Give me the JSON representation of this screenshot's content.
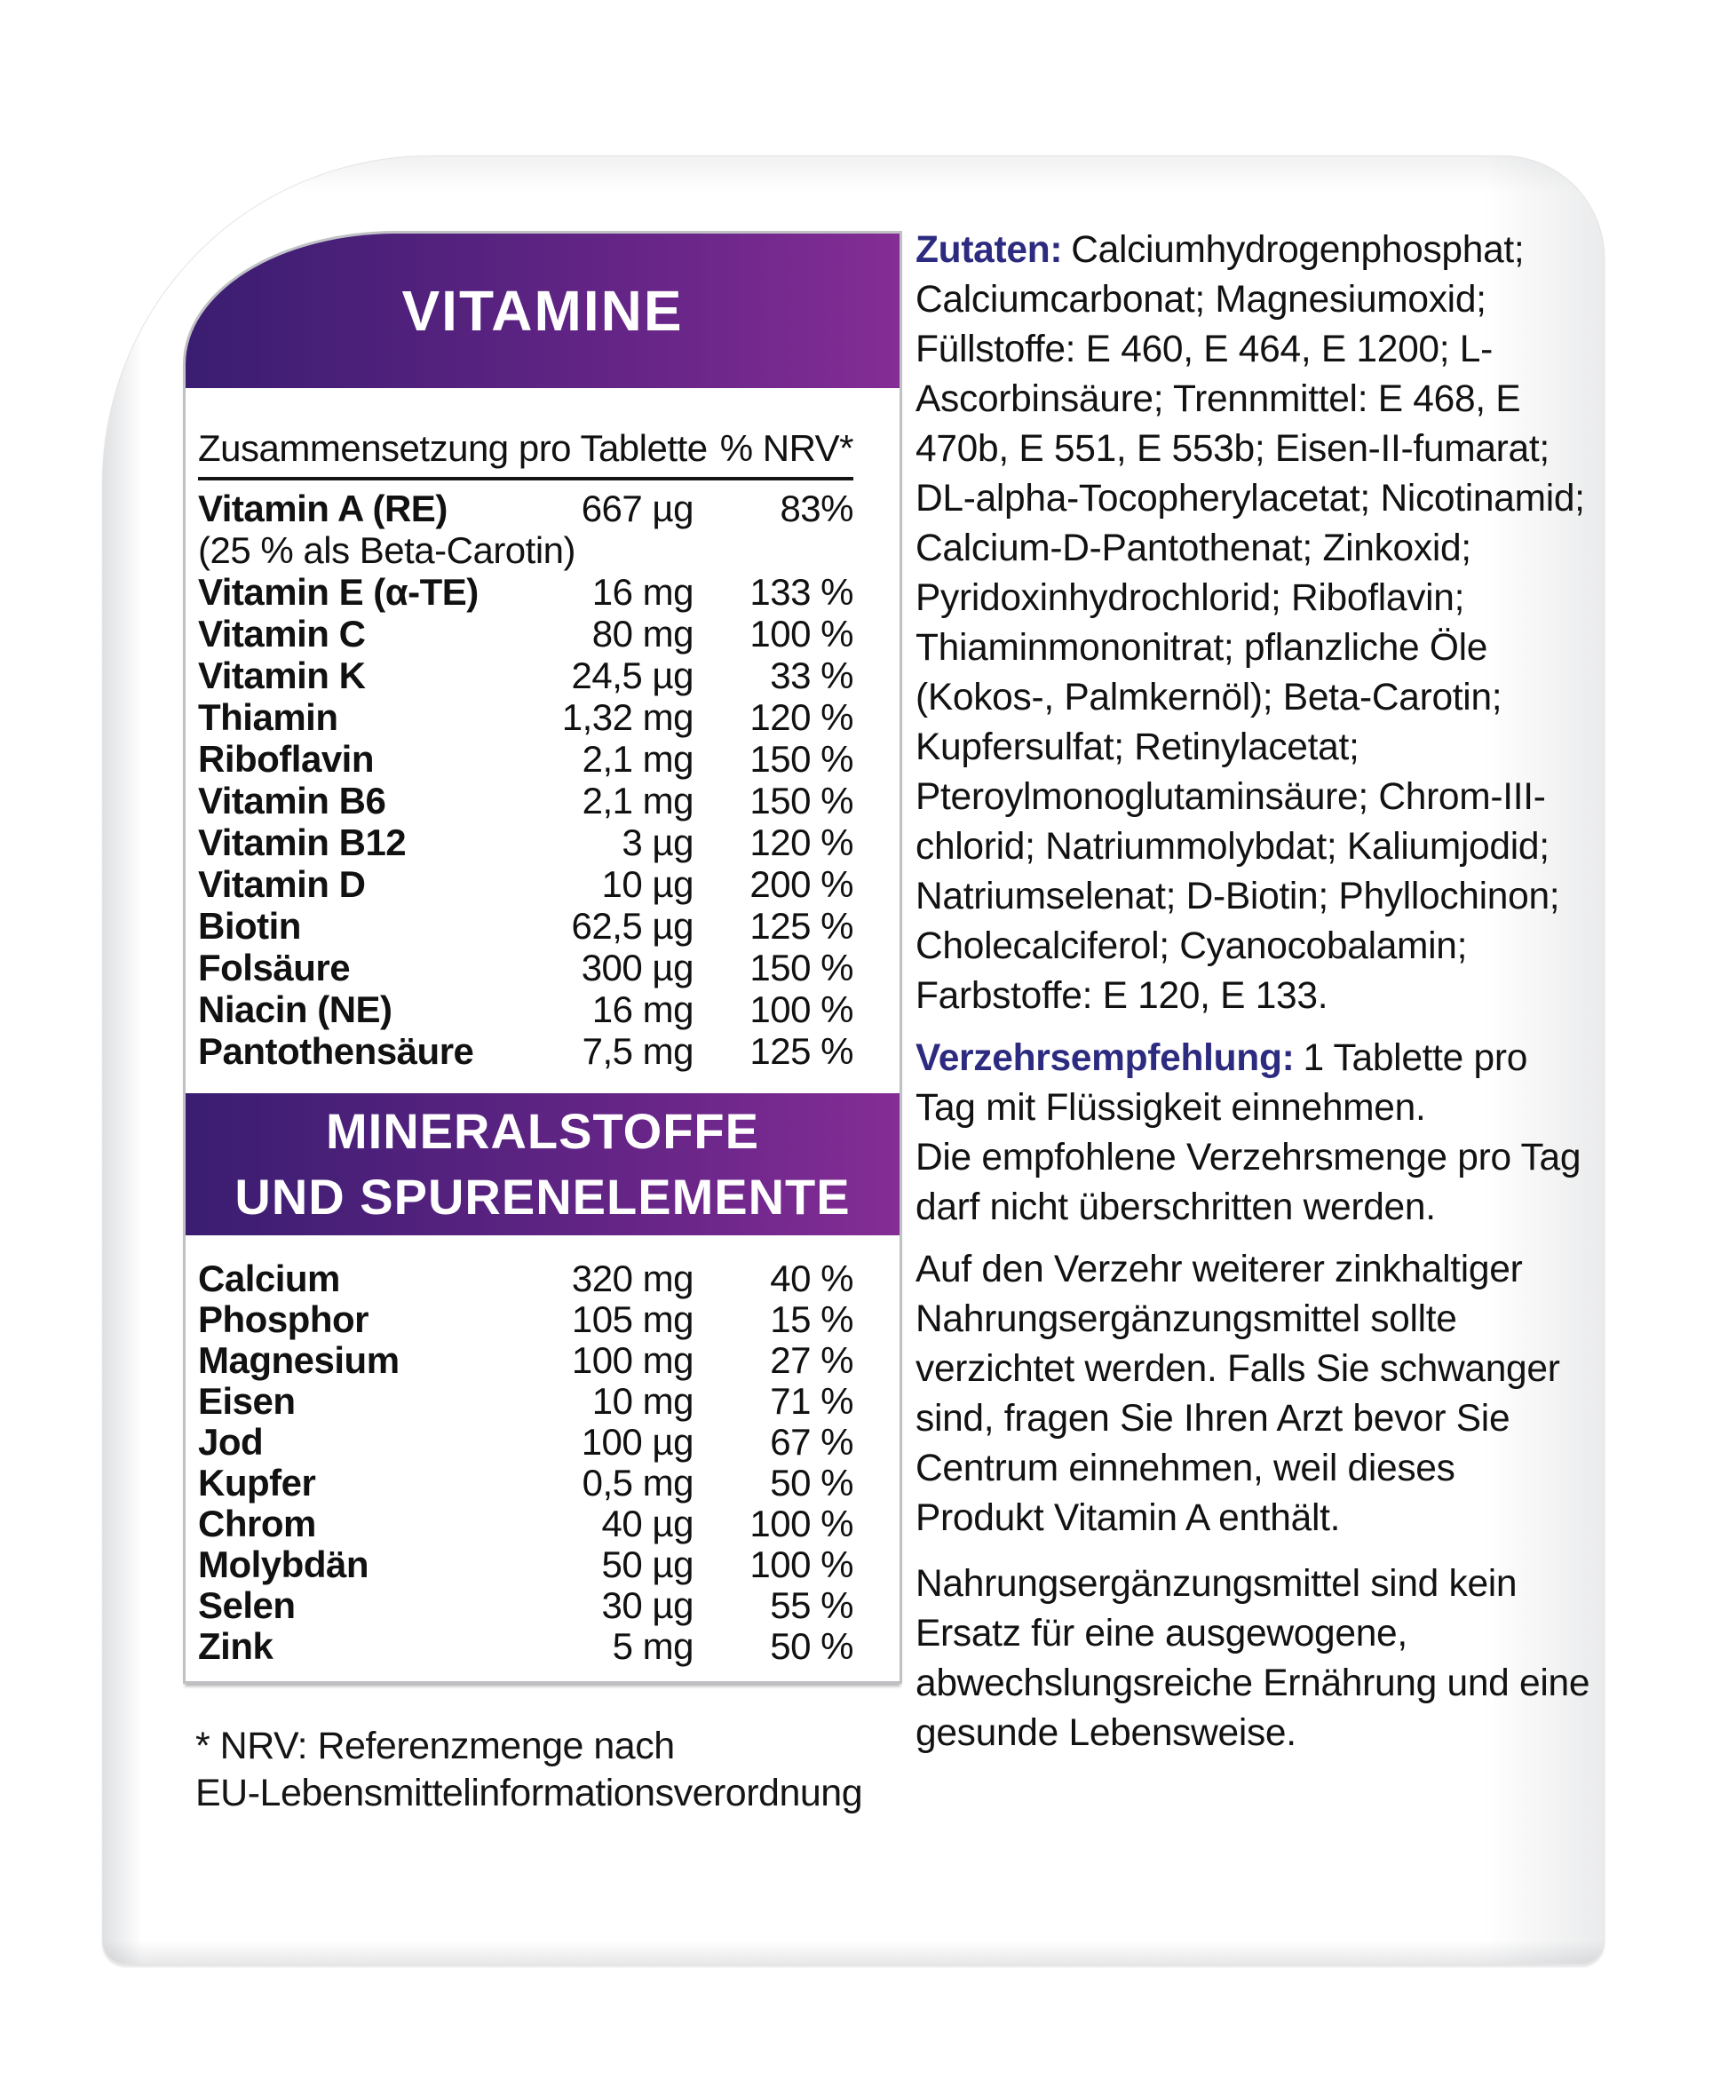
{
  "colors": {
    "banner_gradient_start": "#3a1d71",
    "banner_gradient_end": "#842d95",
    "accent_label_text": "#2d2b80",
    "body_text": "#121212"
  },
  "vitamins_section": {
    "banner_title": "VITAMINE",
    "header": {
      "col1": "Zusammensetzung pro Tablette",
      "col2": "% NRV*"
    },
    "rows": [
      {
        "name": "Vitamin A (RE)",
        "amount": "667 µg",
        "nrv": "83%",
        "note": "(25 % als Beta-Carotin)"
      },
      {
        "name": "Vitamin E (α-TE)",
        "amount": "16 mg",
        "nrv": "133 %"
      },
      {
        "name": "Vitamin C",
        "amount": "80 mg",
        "nrv": "100 %"
      },
      {
        "name": "Vitamin K",
        "amount": "24,5 µg",
        "nrv": "33 %"
      },
      {
        "name": "Thiamin",
        "amount": "1,32 mg",
        "nrv": "120 %"
      },
      {
        "name": "Riboflavin",
        "amount": "2,1 mg",
        "nrv": "150 %"
      },
      {
        "name": "Vitamin B6",
        "amount": "2,1 mg",
        "nrv": "150 %"
      },
      {
        "name": "Vitamin B12",
        "amount": "3 µg",
        "nrv": "120 %"
      },
      {
        "name": "Vitamin D",
        "amount": "10 µg",
        "nrv": "200 %"
      },
      {
        "name": "Biotin",
        "amount": "62,5 µg",
        "nrv": "125 %"
      },
      {
        "name": "Folsäure",
        "amount": "300 µg",
        "nrv": "150 %"
      },
      {
        "name": "Niacin (NE)",
        "amount": "16 mg",
        "nrv": "100 %"
      },
      {
        "name": "Pantothensäure",
        "amount": "7,5 mg",
        "nrv": "125 %"
      }
    ]
  },
  "minerals_section": {
    "banner_line1": "MINERALSTOFFE",
    "banner_line2": "UND SPURENELEMENTE",
    "rows": [
      {
        "name": "Calcium",
        "amount": "320 mg",
        "nrv": "40 %"
      },
      {
        "name": "Phosphor",
        "amount": "105 mg",
        "nrv": "15 %"
      },
      {
        "name": "Magnesium",
        "amount": "100 mg",
        "nrv": "27 %"
      },
      {
        "name": "Eisen",
        "amount": "10 mg",
        "nrv": "71 %"
      },
      {
        "name": "Jod",
        "amount": "100 µg",
        "nrv": "67 %"
      },
      {
        "name": "Kupfer",
        "amount": "0,5 mg",
        "nrv": "50 %"
      },
      {
        "name": "Chrom",
        "amount": "40 µg",
        "nrv": "100 %"
      },
      {
        "name": "Molybdän",
        "amount": "50 µg",
        "nrv": "100 %"
      },
      {
        "name": "Selen",
        "amount": "30 µg",
        "nrv": "55 %"
      },
      {
        "name": "Zink",
        "amount": "5 mg",
        "nrv": "50 %"
      }
    ]
  },
  "footnote": {
    "line1": "* NRV: Referenzmenge nach",
    "line2": "EU-Lebensmittelinformationsverordnung"
  },
  "info_column": {
    "zutaten_label": "Zutaten:",
    "zutaten_text": "Calciumhydrogenphosphat; Calciumcarbonat; Magnesiumoxid; Füllstoffe: E 460, E 464, E 1200; L-Ascorbinsäure; Trennmittel: E 468, E 470b, E 551, E 553b; Eisen-II-fumarat; DL-alpha-Tocopherylacetat; Nicotinamid; Calcium-D-Pantothenat; Zinkoxid; Pyridoxinhydrochlorid; Riboflavin; Thiaminmononitrat; pflanzliche Öle (Kokos-, Palmkernöl); Beta-Carotin; Kupfersulfat; Retinylacetat; Pteroylmonoglutaminsäure; Chrom-III-chlorid; Natriummolybdat; Kaliumjodid; Natriumselenat; D-Biotin; Phyllochinon; Cholecalciferol; Cyanocobalamin; Farbstoffe: E 120, E 133.",
    "verzehr_label": "Verzehrsempfehlung:",
    "verzehr_text1": "1 Tablette pro Tag mit Flüssigkeit einnehmen.",
    "verzehr_text2": "Die empfohlene Verzehrsmenge pro Tag darf nicht überschritten werden.",
    "verzehr_text3": "Auf den Verzehr weiterer zinkhaltiger Nahrungsergänzungsmittel sollte verzichtet werden. Falls Sie schwanger sind, fragen Sie Ihren Arzt bevor Sie Centrum einnehmen, weil dieses Produkt Vitamin A enthält.",
    "verzehr_text4": "Nahrungsergänzungsmittel sind kein Ersatz für eine ausgewogene, abwechslungsreiche Ernährung und eine gesunde Lebensweise."
  }
}
